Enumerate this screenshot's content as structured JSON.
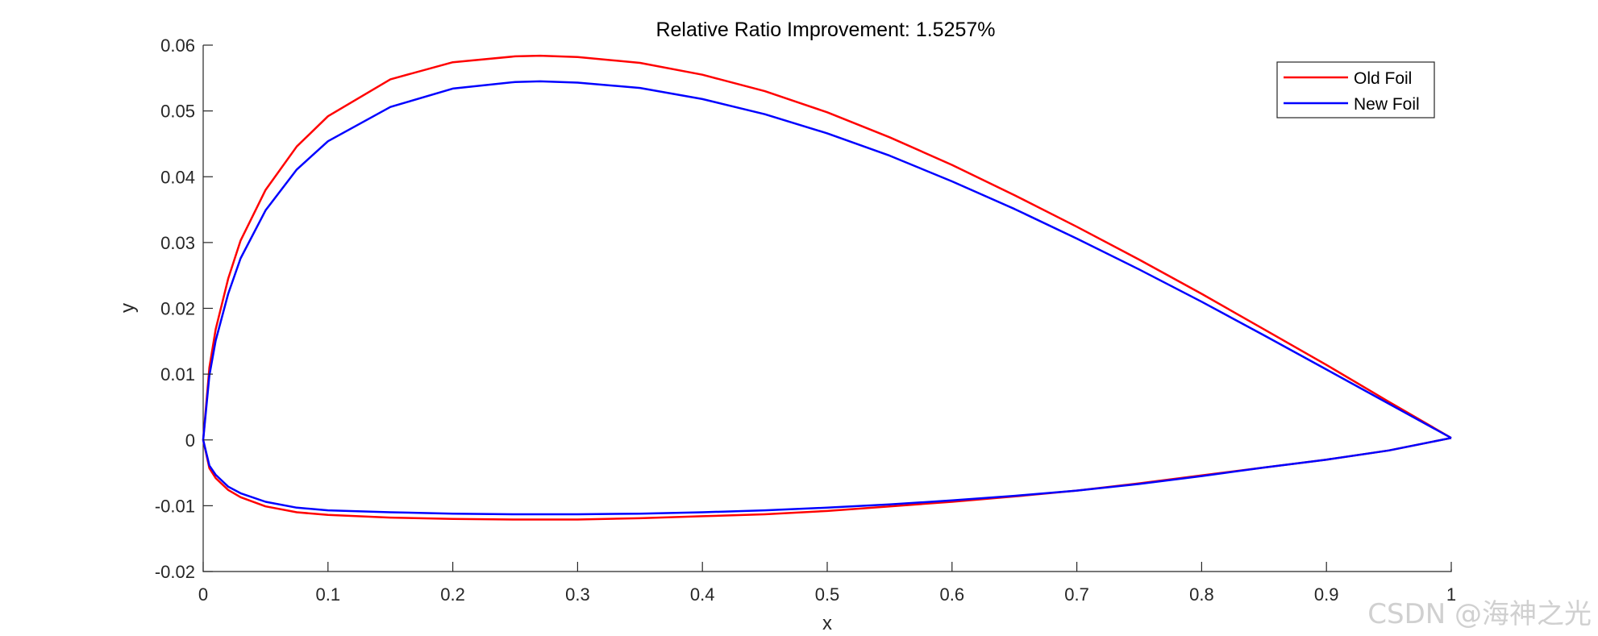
{
  "chart_data": {
    "type": "line",
    "title": "Relative Ratio Improvement: 1.5257%",
    "xlabel": "x",
    "ylabel": "y",
    "xlim": [
      0,
      1
    ],
    "ylim": [
      -0.02,
      0.06
    ],
    "xticks": [
      0,
      0.1,
      0.2,
      0.3,
      0.4,
      0.5,
      0.6,
      0.7,
      0.8,
      0.9,
      1
    ],
    "xtick_labels": [
      "0",
      "0.1",
      "0.2",
      "0.3",
      "0.4",
      "0.5",
      "0.6",
      "0.7",
      "0.8",
      "0.9",
      "1"
    ],
    "yticks": [
      -0.02,
      -0.01,
      0,
      0.01,
      0.02,
      0.03,
      0.04,
      0.05,
      0.06
    ],
    "ytick_labels": [
      "-0.02",
      "-0.01",
      "0",
      "0.01",
      "0.02",
      "0.03",
      "0.04",
      "0.05",
      "0.06"
    ],
    "grid": false,
    "legend_position": "top-right",
    "series": [
      {
        "name": "Old Foil",
        "color": "#ff0000",
        "x": [
          1.0,
          0.95,
          0.9,
          0.85,
          0.8,
          0.75,
          0.7,
          0.65,
          0.6,
          0.55,
          0.5,
          0.45,
          0.4,
          0.35,
          0.3,
          0.27,
          0.25,
          0.2,
          0.15,
          0.1,
          0.075,
          0.05,
          0.03,
          0.02,
          0.01,
          0.005,
          0.0,
          0.005,
          0.01,
          0.02,
          0.03,
          0.05,
          0.075,
          0.1,
          0.15,
          0.2,
          0.25,
          0.28,
          0.3,
          0.35,
          0.4,
          0.45,
          0.5,
          0.55,
          0.6,
          0.65,
          0.7,
          0.75,
          0.8,
          0.85,
          0.9,
          0.95,
          1.0
        ],
        "y": [
          0.0003,
          0.0058,
          0.0114,
          0.0168,
          0.0222,
          0.0274,
          0.0324,
          0.0372,
          0.0418,
          0.046,
          0.0498,
          0.053,
          0.0555,
          0.0573,
          0.0582,
          0.0584,
          0.0583,
          0.0574,
          0.0548,
          0.0492,
          0.0446,
          0.038,
          0.0303,
          0.0245,
          0.0168,
          0.011,
          0.0,
          -0.0043,
          -0.0058,
          -0.0076,
          -0.0087,
          -0.0101,
          -0.011,
          -0.0114,
          -0.0118,
          -0.012,
          -0.0121,
          -0.0121,
          -0.0121,
          -0.0119,
          -0.0116,
          -0.0113,
          -0.0108,
          -0.0101,
          -0.0094,
          -0.0086,
          -0.0077,
          -0.0066,
          -0.0054,
          -0.0042,
          -0.003,
          -0.0016,
          0.0003
        ]
      },
      {
        "name": "New Foil",
        "color": "#0000ff",
        "x": [
          1.0,
          0.95,
          0.9,
          0.85,
          0.8,
          0.75,
          0.7,
          0.65,
          0.6,
          0.55,
          0.5,
          0.45,
          0.4,
          0.35,
          0.3,
          0.27,
          0.25,
          0.2,
          0.15,
          0.1,
          0.075,
          0.05,
          0.03,
          0.02,
          0.01,
          0.005,
          0.0,
          0.005,
          0.01,
          0.02,
          0.03,
          0.05,
          0.075,
          0.1,
          0.15,
          0.2,
          0.25,
          0.3,
          0.35,
          0.4,
          0.45,
          0.5,
          0.55,
          0.6,
          0.65,
          0.7,
          0.75,
          0.8,
          0.85,
          0.9,
          0.95,
          1.0
        ],
        "y": [
          0.0003,
          0.0055,
          0.0107,
          0.0159,
          0.021,
          0.0259,
          0.0306,
          0.0351,
          0.0393,
          0.0432,
          0.0466,
          0.0495,
          0.0518,
          0.0535,
          0.0543,
          0.0545,
          0.0544,
          0.0534,
          0.0506,
          0.0454,
          0.0411,
          0.0349,
          0.0276,
          0.0222,
          0.0151,
          0.0098,
          0.0,
          -0.0039,
          -0.0053,
          -0.0071,
          -0.0081,
          -0.0094,
          -0.0103,
          -0.0107,
          -0.011,
          -0.0112,
          -0.0113,
          -0.0113,
          -0.0112,
          -0.011,
          -0.0107,
          -0.0103,
          -0.0098,
          -0.0092,
          -0.0085,
          -0.0077,
          -0.0067,
          -0.0055,
          -0.0042,
          -0.003,
          -0.0016,
          0.0003
        ]
      }
    ]
  },
  "watermark": "CSDN @海神之光"
}
